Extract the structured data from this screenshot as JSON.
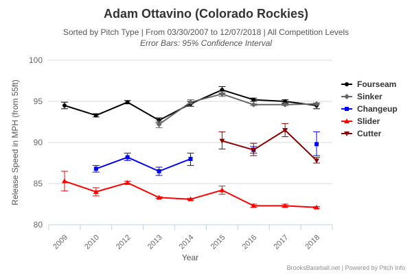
{
  "chart_data": {
    "type": "line",
    "title": "Adam Ottavino (Colorado Rockies)",
    "subtitle": "Sorted by Pitch Type | From 03/30/2007 to 12/07/2018 | All Competition Levels",
    "subtitle2": "Error Bars: 95% Confidence Interval",
    "xlabel": "Year",
    "ylabel": "Release Speed in MPH (from 55ft)",
    "ylim": [
      80,
      100
    ],
    "yticks": [
      "80",
      "85",
      "90",
      "95",
      "100"
    ],
    "categories": [
      "2009",
      "2010",
      "2012",
      "2013",
      "2014",
      "2015",
      "2016",
      "2017",
      "2018"
    ],
    "legend_position": "right",
    "credit": "BrooksBaseball.net | Powered by Pitch Info",
    "series": [
      {
        "name": "Fourseam",
        "color": "#000000",
        "marker": "circle",
        "values": [
          94.5,
          93.3,
          94.9,
          92.7,
          94.7,
          96.4,
          95.2,
          95.0,
          94.5
        ],
        "low": [
          94.1,
          93.1,
          94.7,
          92.4,
          94.4,
          96.0,
          95.0,
          94.8,
          94.1
        ],
        "high": [
          94.9,
          93.5,
          95.1,
          93.0,
          95.0,
          96.8,
          95.4,
          95.2,
          94.8
        ]
      },
      {
        "name": "Sinker",
        "color": "#666666",
        "marker": "diamond",
        "values": [
          null,
          null,
          null,
          92.2,
          94.9,
          95.9,
          94.6,
          94.6,
          94.7
        ],
        "low": [
          null,
          null,
          null,
          91.8,
          94.7,
          95.6,
          94.5,
          94.5,
          94.6
        ],
        "high": [
          null,
          null,
          null,
          92.6,
          95.2,
          96.2,
          94.7,
          94.7,
          94.8
        ]
      },
      {
        "name": "Changeup",
        "color": "#0000ff",
        "marker": "square",
        "values": [
          null,
          86.8,
          88.2,
          86.5,
          88.0,
          null,
          89.1,
          null,
          89.8
        ],
        "low": [
          null,
          86.4,
          87.8,
          86.0,
          87.2,
          null,
          88.7,
          null,
          88.4
        ],
        "high": [
          null,
          87.2,
          88.7,
          87.0,
          88.7,
          null,
          89.5,
          null,
          91.3
        ]
      },
      {
        "name": "Slider",
        "color": "#ff0000",
        "marker": "triangle",
        "values": [
          85.3,
          84.0,
          85.1,
          83.3,
          83.1,
          84.2,
          82.3,
          82.3,
          82.1
        ],
        "low": [
          84.1,
          83.5,
          84.9,
          83.2,
          83.0,
          83.7,
          82.1,
          82.1,
          82.0
        ],
        "high": [
          86.5,
          84.5,
          85.3,
          83.4,
          83.2,
          84.7,
          82.5,
          82.5,
          82.2
        ]
      },
      {
        "name": "Cutter",
        "color": "#8b0000",
        "marker": "triangle-down",
        "values": [
          null,
          null,
          null,
          null,
          null,
          90.2,
          89.1,
          91.5,
          87.8
        ],
        "low": [
          null,
          null,
          null,
          null,
          null,
          89.2,
          88.4,
          90.7,
          87.5
        ],
        "high": [
          null,
          null,
          null,
          null,
          null,
          91.3,
          89.9,
          92.3,
          88.2
        ]
      }
    ]
  }
}
